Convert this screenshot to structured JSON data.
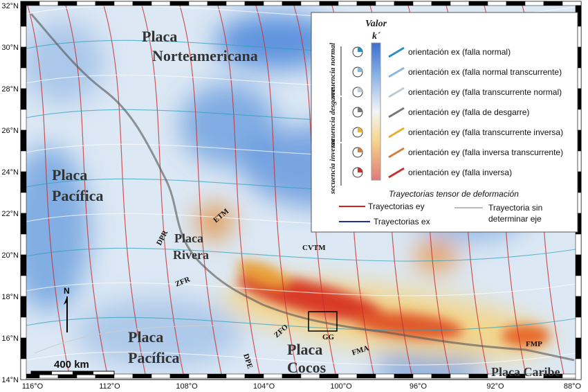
{
  "map": {
    "lat_labels": [
      "32°N",
      "30°N",
      "28°N",
      "26°N",
      "24°N",
      "22°N",
      "20°N",
      "18°N",
      "16°N",
      "14°N"
    ],
    "lon_labels": [
      "116°O",
      "112°O",
      "108°O",
      "104°O",
      "100°O",
      "96°O",
      "92°O",
      "88°O"
    ],
    "place_labels": [
      {
        "lines": [
          "Placa",
          "Norteamericana"
        ]
      },
      {
        "lines": [
          "Placa",
          "Pacífica"
        ]
      },
      {
        "lines": [
          "Placa",
          "Rivera"
        ]
      },
      {
        "lines": [
          "Placa",
          "Pacífica"
        ]
      },
      {
        "lines": [
          "Placa",
          "Cocos"
        ]
      },
      {
        "lines": [
          "Placa Caribe"
        ]
      }
    ],
    "feature_labels": [
      "DPR",
      "ZFR",
      "ETM",
      "CVTM",
      "ZFO",
      "GG",
      "FMA",
      "DPE",
      "FMP"
    ],
    "scale_bar": "400 km",
    "north": "N"
  },
  "legend": {
    "title": [
      "Valor",
      "k´"
    ],
    "groups": [
      "secuencia normal",
      "secuencia desgarre",
      "secuencia inversa"
    ],
    "items": [
      "orientación ex (falla normal)",
      "orientación ex (falla normal transcurrente)",
      "orientación ey (falla transcurrente normal)",
      "orientación ey (falla de desgarre)",
      "orientación ey (falla transcurrente inversa)",
      "orientación ey (falla inversa transcurrente)",
      "orientación ey (falla inversa)"
    ],
    "trajectory_title": "Trayectorias tensor de deformación",
    "trajectories": [
      {
        "lines": [
          "Trayectorias ey"
        ]
      },
      {
        "lines": [
          "Trayectorias ex"
        ]
      },
      {
        "lines": [
          "Trayectoria sin",
          "determinar eje"
        ]
      }
    ]
  }
}
